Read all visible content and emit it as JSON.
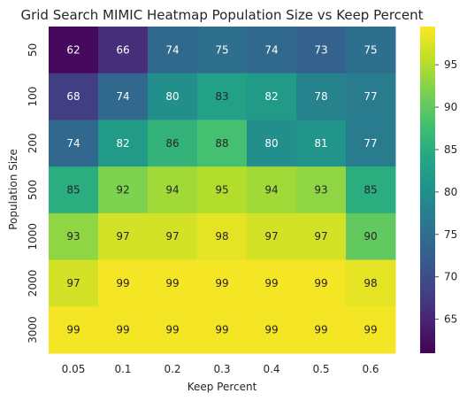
{
  "chart_data": {
    "type": "heatmap",
    "title": "Grid Search MIMIC Heatmap Population Size vs Keep Percent",
    "xlabel": "Keep Percent",
    "ylabel": "Population Size",
    "x_categories": [
      "0.05",
      "0.1",
      "0.2",
      "0.3",
      "0.4",
      "0.5",
      "0.6"
    ],
    "y_categories": [
      "50",
      "100",
      "200",
      "500",
      "1000",
      "2000",
      "3000"
    ],
    "values": [
      [
        62,
        66,
        74,
        75,
        74,
        73,
        75
      ],
      [
        68,
        74,
        80,
        83,
        82,
        78,
        77
      ],
      [
        74,
        82,
        86,
        88,
        80,
        81,
        77
      ],
      [
        85,
        92,
        94,
        95,
        94,
        93,
        85
      ],
      [
        93,
        97,
        97,
        98,
        97,
        97,
        90
      ],
      [
        97,
        99,
        99,
        99,
        99,
        99,
        98
      ],
      [
        99,
        99,
        99,
        99,
        99,
        99,
        99
      ]
    ],
    "colormap": "viridis",
    "color_range": [
      61,
      99.5
    ],
    "colorbar_ticks": [
      65,
      70,
      75,
      80,
      85,
      90,
      95
    ],
    "annotations": true
  }
}
